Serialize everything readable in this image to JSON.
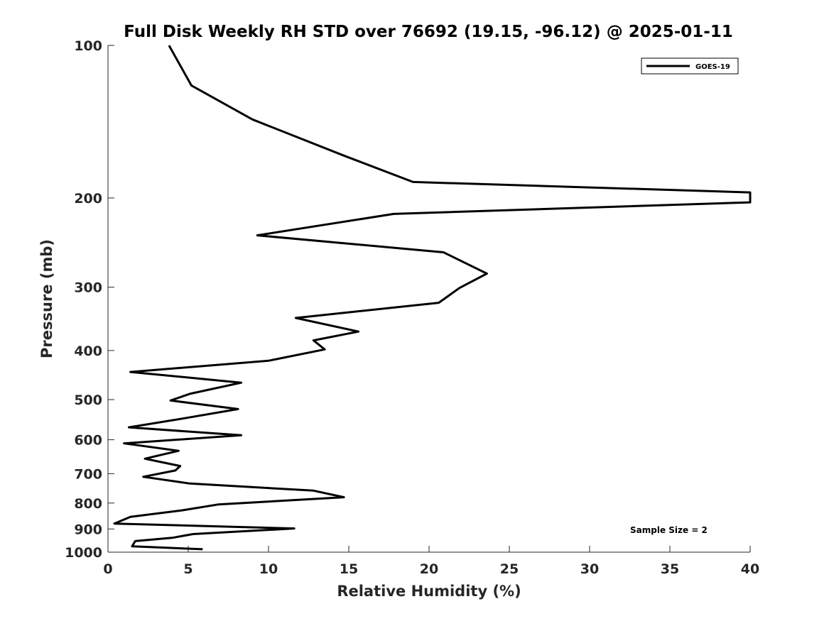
{
  "chart_data": {
    "type": "line",
    "title": "Full Disk Weekly RH STD over 76692 (19.15, -96.12) @ 2025-01-11",
    "xlabel": "Relative Humidity (%)",
    "ylabel": "Pressure (mb)",
    "xlim": [
      0,
      40
    ],
    "ylim": [
      100,
      1000
    ],
    "y_scale": "log",
    "y_reversed": true,
    "x_ticks": [
      0,
      5,
      10,
      15,
      20,
      25,
      30,
      35,
      40
    ],
    "y_ticks": [
      100,
      200,
      300,
      400,
      500,
      600,
      700,
      800,
      900,
      1000
    ],
    "grid": false,
    "legend": {
      "location": "top-right",
      "entries": [
        "GOES-19"
      ]
    },
    "annotation": "Sample Size = 2",
    "series": [
      {
        "name": "GOES-19",
        "color": "#000000",
        "points": [
          [
            3.8,
            100
          ],
          [
            5.2,
            120
          ],
          [
            9.0,
            140
          ],
          [
            14.7,
            165
          ],
          [
            19.0,
            186
          ],
          [
            40.0,
            195
          ],
          [
            40.0,
            204
          ],
          [
            17.8,
            215
          ],
          [
            9.3,
            237
          ],
          [
            20.9,
            256
          ],
          [
            23.6,
            282
          ],
          [
            21.9,
            301
          ],
          [
            20.6,
            322
          ],
          [
            11.7,
            345
          ],
          [
            15.6,
            367
          ],
          [
            12.8,
            382
          ],
          [
            13.5,
            398
          ],
          [
            10.0,
            419
          ],
          [
            1.4,
            441
          ],
          [
            8.3,
            463
          ],
          [
            5.1,
            487
          ],
          [
            3.9,
            502
          ],
          [
            8.1,
            522
          ],
          [
            4.8,
            544
          ],
          [
            1.3,
            567
          ],
          [
            8.3,
            588
          ],
          [
            1.0,
            610
          ],
          [
            4.4,
            631
          ],
          [
            2.3,
            654
          ],
          [
            4.5,
            676
          ],
          [
            4.2,
            690
          ],
          [
            2.2,
            710
          ],
          [
            5.1,
            732
          ],
          [
            12.8,
            756
          ],
          [
            14.7,
            779
          ],
          [
            6.9,
            805
          ],
          [
            4.6,
            827
          ],
          [
            1.4,
            852
          ],
          [
            0.4,
            878
          ],
          [
            11.6,
            898
          ],
          [
            5.3,
            921
          ],
          [
            4.0,
            937
          ],
          [
            1.7,
            951
          ],
          [
            1.5,
            974
          ],
          [
            5.9,
            987
          ]
        ]
      }
    ]
  }
}
